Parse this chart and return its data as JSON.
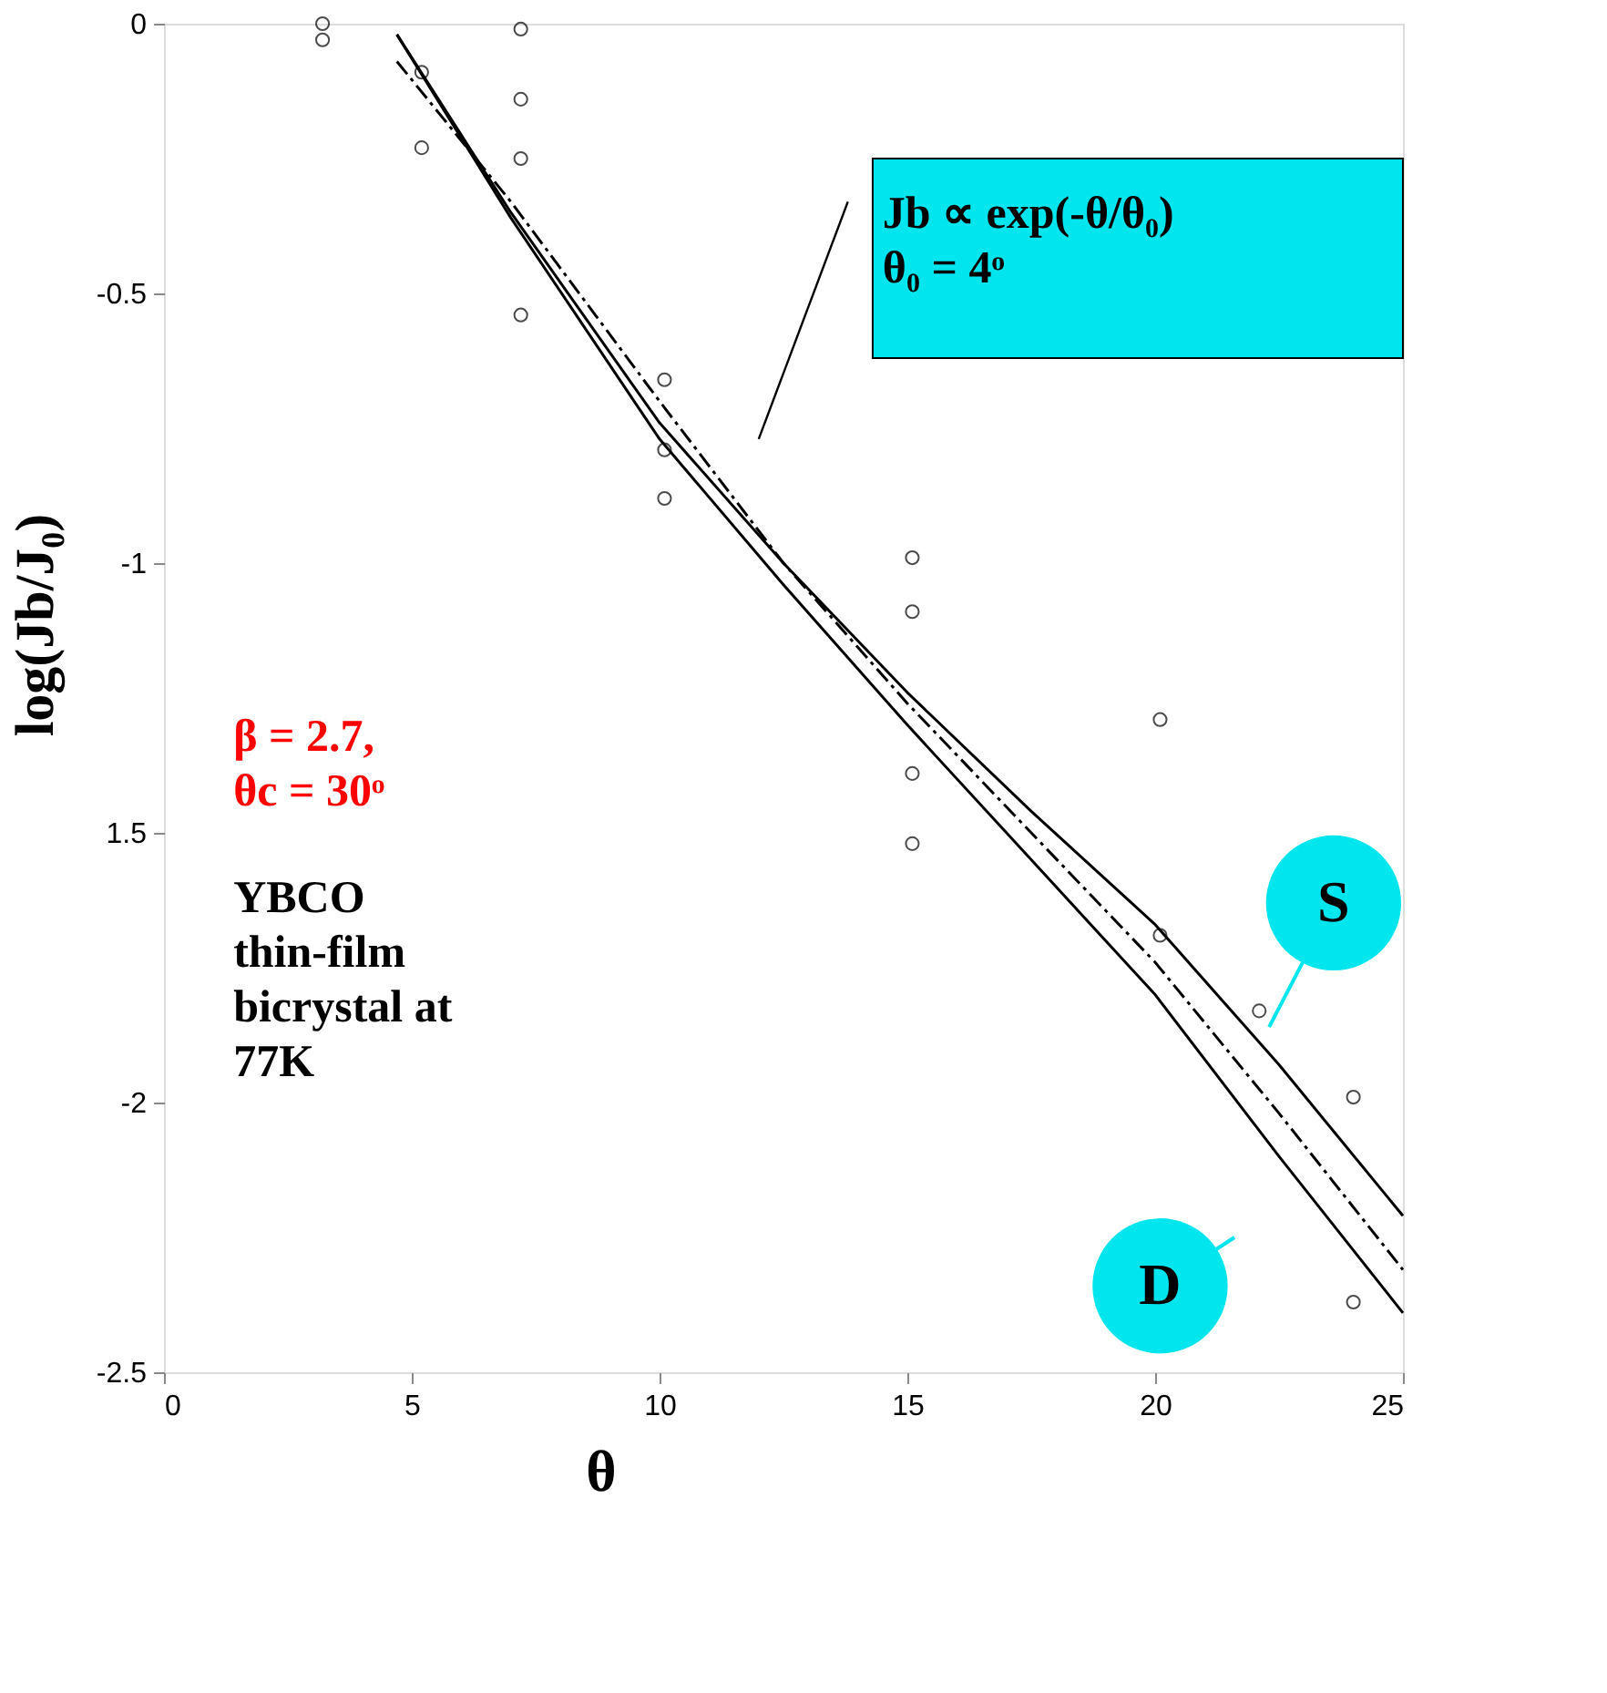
{
  "chart_data": {
    "type": "scatter",
    "xlabel": "θ",
    "ylabel": "log(Jb/J₀)",
    "xlim": [
      0,
      25
    ],
    "ylim": [
      -2.5,
      0
    ],
    "xticks": [
      0,
      5,
      10,
      15,
      20,
      25
    ],
    "yticks": [
      -2.5,
      -2,
      {
        "value": -1.5,
        "label": "1.5"
      },
      -1,
      -0.5,
      0
    ],
    "grid": false,
    "series": [
      {
        "marker": "circle",
        "color": "#000000",
        "x": [
          3.2,
          3.2,
          5.2,
          5.2,
          7.2,
          7.2,
          7.2,
          7.2,
          10.1,
          10.1,
          10.1,
          15.1,
          15.1,
          15.1,
          15.1,
          20.1,
          20.1,
          22.1,
          24,
          24
        ],
        "values": [
          0,
          -0.03,
          -0.09,
          -0.23,
          -0.01,
          -0.14,
          -0.25,
          -0.54,
          -0.66,
          -0.79,
          -0.88,
          -0.99,
          -1.09,
          -1.39,
          -1.52,
          -1.29,
          -1.69,
          -1.83,
          -1.99,
          -2.37
        ]
      },
      {
        "type": "line",
        "name": "S",
        "color": "#000000",
        "line_style": "solid",
        "x": [
          4.7,
          7,
          10,
          12.5,
          15,
          17.5,
          20,
          22.5,
          25
        ],
        "values": [
          -0.02,
          -0.35,
          -0.74,
          -1.0,
          -1.24,
          -1.46,
          -1.67,
          -1.93,
          -2.21
        ]
      },
      {
        "type": "line",
        "name": "D",
        "color": "#000000",
        "line_style": "solid",
        "x": [
          4.7,
          7,
          10,
          12.5,
          15,
          17.5,
          20,
          22.5,
          25
        ],
        "values": [
          -0.02,
          -0.36,
          -0.77,
          -1.04,
          -1.3,
          -1.55,
          -1.8,
          -2.1,
          -2.39
        ]
      },
      {
        "type": "line",
        "color": "#000000",
        "line_style": "dashdot",
        "x": [
          4.7,
          7,
          10,
          12.5,
          15,
          17.5,
          20,
          22.5,
          25
        ],
        "values": [
          -0.07,
          -0.33,
          -0.7,
          -1.0,
          -1.26,
          -1.5,
          -1.74,
          -2.02,
          -2.31
        ]
      }
    ],
    "annotations": [
      "Jb ∝ exp(-θ/θ₀)\nθ₀ =  4ᵒ",
      "β = 2.7,\nθc = 30ᵒ",
      "YBCO\nthin-film\nbicrystal at\n77K"
    ]
  }
}
